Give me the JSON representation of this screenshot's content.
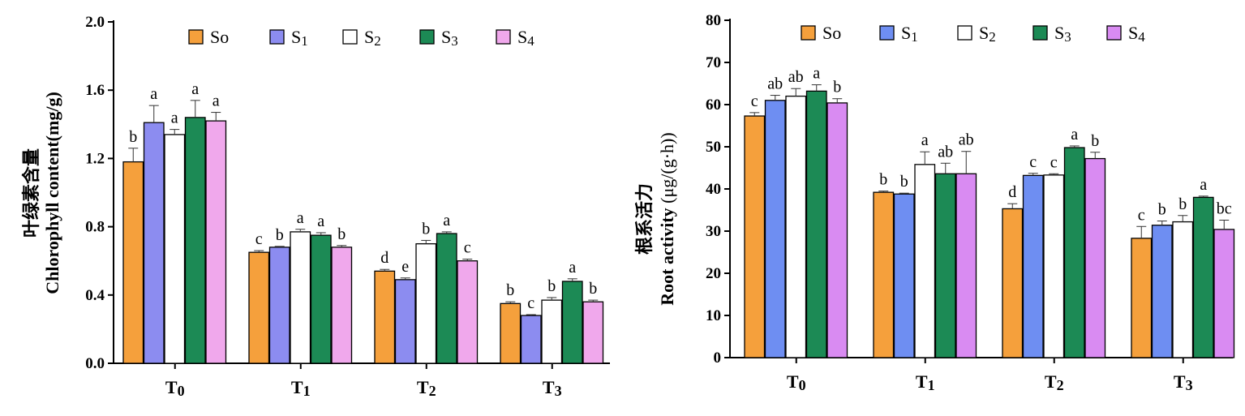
{
  "colors": {
    "S0": "#F5A03C",
    "S1": "#8C8CF0",
    "S2": "#FFFFFF",
    "S3": "#1C8A55",
    "S4": "#F0A8EC",
    "S4_right": "#D98BF2",
    "S1_right": "#6E8EF2"
  },
  "legend": [
    {
      "key": "S0",
      "label": "So"
    },
    {
      "key": "S1",
      "label": "S1"
    },
    {
      "key": "S2",
      "label": "S2"
    },
    {
      "key": "S3",
      "label": "S3"
    },
    {
      "key": "S4",
      "label": "S4"
    }
  ],
  "chart_data": [
    {
      "type": "bar",
      "ylabel_cn": "叶绿素含量",
      "ylabel": "Chlorophyll content(mg/g)",
      "xlabel": "",
      "ylim": [
        0,
        2.0
      ],
      "yticks": [
        "0.0",
        "0.4",
        "0.8",
        "1.2",
        "1.6",
        "2.0"
      ],
      "categories": [
        "T0",
        "T1",
        "T2",
        "T3"
      ],
      "series": [
        {
          "name": "S0",
          "values": [
            1.18,
            0.65,
            0.54,
            0.35
          ],
          "errors": [
            0.08,
            0.01,
            0.01,
            0.01
          ],
          "letters": [
            "b",
            "c",
            "d",
            "b"
          ]
        },
        {
          "name": "S1",
          "values": [
            1.41,
            0.68,
            0.49,
            0.28
          ],
          "errors": [
            0.1,
            0.005,
            0.01,
            0.005
          ],
          "letters": [
            "a",
            "b",
            "e",
            "c"
          ]
        },
        {
          "name": "S2",
          "values": [
            1.34,
            0.77,
            0.7,
            0.37
          ],
          "errors": [
            0.03,
            0.015,
            0.02,
            0.015
          ],
          "letters": [
            "a",
            "a",
            "b",
            "b"
          ]
        },
        {
          "name": "S3",
          "values": [
            1.44,
            0.75,
            0.76,
            0.48
          ],
          "errors": [
            0.1,
            0.015,
            0.01,
            0.015
          ],
          "letters": [
            "a",
            "a",
            "a",
            "a"
          ]
        },
        {
          "name": "S4",
          "values": [
            1.42,
            0.68,
            0.6,
            0.36
          ],
          "errors": [
            0.05,
            0.01,
            0.01,
            0.01
          ],
          "letters": [
            "a",
            "b",
            "c",
            "b"
          ]
        }
      ]
    },
    {
      "type": "bar",
      "ylabel_cn": "根系活力",
      "ylabel": "Root activity",
      "ylabel_unit": "(μg/(g·h))",
      "xlabel": "",
      "ylim": [
        0,
        80
      ],
      "yticks": [
        "0",
        "10",
        "20",
        "30",
        "40",
        "50",
        "60",
        "70",
        "80"
      ],
      "categories": [
        "T0",
        "T1",
        "T2",
        "T3"
      ],
      "series": [
        {
          "name": "S0",
          "values": [
            57.3,
            39.2,
            35.3,
            28.3
          ],
          "errors": [
            0.8,
            0.3,
            1.2,
            2.8
          ],
          "letters": [
            "c",
            "b",
            "d",
            "c"
          ]
        },
        {
          "name": "S1",
          "values": [
            61.0,
            38.8,
            43.2,
            31.4
          ],
          "errors": [
            1.2,
            0.2,
            0.5,
            1.0
          ],
          "letters": [
            "ab",
            "b",
            "c",
            "b"
          ]
        },
        {
          "name": "S2",
          "values": [
            62.0,
            45.8,
            43.3,
            32.2
          ],
          "errors": [
            1.8,
            3.0,
            0.3,
            1.5
          ],
          "letters": [
            "ab",
            "a",
            "c",
            "b"
          ]
        },
        {
          "name": "S3",
          "values": [
            63.2,
            43.6,
            49.8,
            38.0
          ],
          "errors": [
            1.5,
            2.5,
            0.4,
            0.3
          ],
          "letters": [
            "a",
            "ab",
            "a",
            "a"
          ]
        },
        {
          "name": "S4",
          "values": [
            60.4,
            43.6,
            47.2,
            30.4
          ],
          "errors": [
            1.0,
            5.3,
            1.5,
            2.2
          ],
          "letters": [
            "b",
            "ab",
            "b",
            "bc"
          ]
        }
      ]
    }
  ]
}
